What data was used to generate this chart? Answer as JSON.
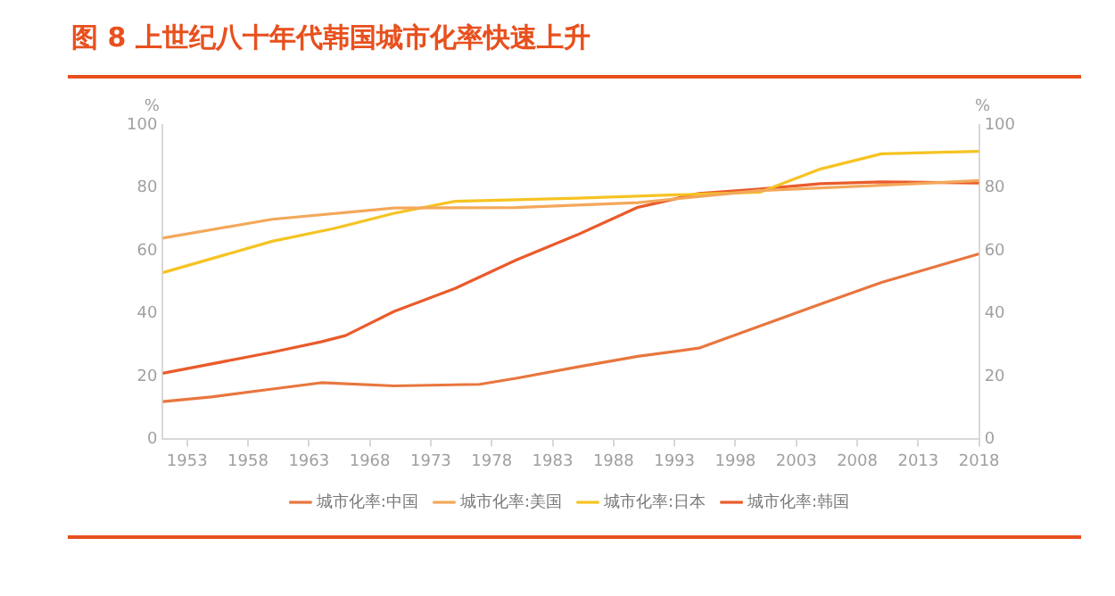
{
  "chart_data": {
    "type": "line",
    "title": "图 8  上世纪八十年代韩国城市化率快速上升",
    "ylabel": "%",
    "y2label": "%",
    "xlim": [
      1951,
      2018
    ],
    "xticks": [
      1953,
      1958,
      1963,
      1968,
      1973,
      1978,
      1983,
      1988,
      1993,
      1998,
      2003,
      2008,
      2013,
      2018
    ],
    "ylim": [
      0,
      100
    ],
    "yticks": [
      0,
      20,
      40,
      60,
      80,
      100
    ],
    "y2lim": [
      0,
      100
    ],
    "y2ticks": [
      0,
      20,
      40,
      60,
      80,
      100
    ],
    "grid": false,
    "legend": "bottom",
    "marker": "none",
    "line_style": "solid",
    "series": [
      {
        "name": "城市化率:中国",
        "color": "#e8763e",
        "x": [
          1951,
          1955,
          1960,
          1964,
          1970,
          1977,
          1980,
          1985,
          1990,
          1995,
          2000,
          2005,
          2010,
          2015,
          2018
        ],
        "values": [
          12,
          13.5,
          16,
          18,
          17,
          17.5,
          19.4,
          23,
          26.4,
          29,
          36,
          43,
          49.9,
          55.6,
          59
        ]
      },
      {
        "name": "城市化率:美国",
        "color": "#f3a85a",
        "x": [
          1951,
          1960,
          1970,
          1980,
          1990,
          2000,
          2010,
          2018
        ],
        "values": [
          64,
          70,
          73.6,
          73.7,
          75.3,
          79.1,
          80.8,
          82.3
        ]
      },
      {
        "name": "城市化率:日本",
        "color": "#f6c322",
        "x": [
          1951,
          1960,
          1965,
          1970,
          1975,
          1985,
          1995,
          2000,
          2005,
          2010,
          2018
        ],
        "values": [
          53,
          63,
          67,
          71.9,
          75.7,
          76.7,
          78,
          78.6,
          86,
          90.8,
          91.6
        ]
      },
      {
        "name": "城市化率:韩国",
        "color": "#e95b2b",
        "x": [
          1951,
          1960,
          1964,
          1966,
          1970,
          1975,
          1980,
          1985,
          1990,
          1995,
          2000,
          2005,
          2010,
          2018
        ],
        "values": [
          21,
          27.7,
          31,
          33,
          40.7,
          48,
          57,
          65,
          73.8,
          78.2,
          79.6,
          81.3,
          81.9,
          81.5
        ]
      }
    ]
  }
}
